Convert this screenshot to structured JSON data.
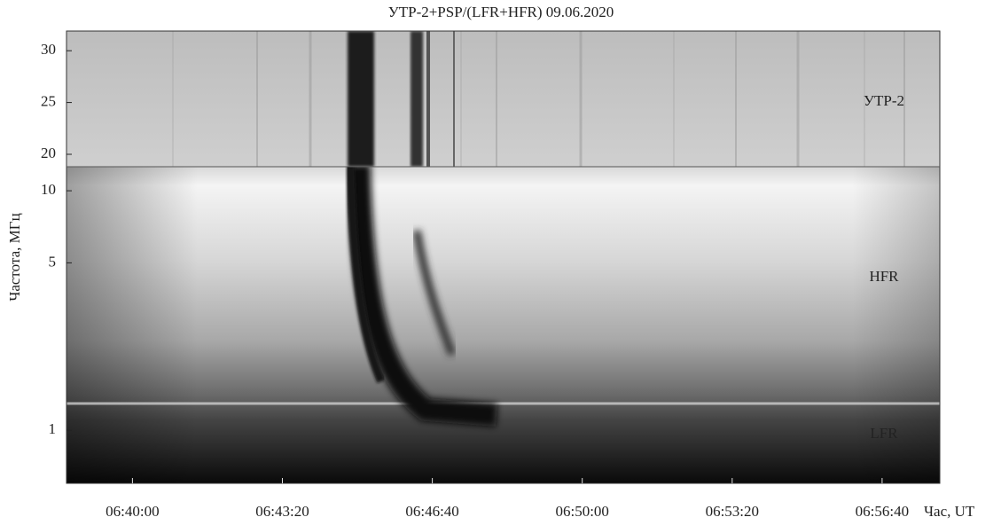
{
  "chart_data": {
    "type": "spectrogram",
    "title": "УТР-2+PSP/(LFR+HFR) 09.06.2020",
    "ylabel": "Частота, МГц",
    "xlabel": "Час, UT",
    "xlim": [
      23912,
      25077
    ],
    "xticks": [
      {
        "value": 24000,
        "label": "06:40:00"
      },
      {
        "value": 24200,
        "label": "06:43:20"
      },
      {
        "value": 24400,
        "label": "06:46:40"
      },
      {
        "value": 24600,
        "label": "06:50:00"
      },
      {
        "value": 24800,
        "label": "06:53:20"
      },
      {
        "value": 25000,
        "label": "06:56:40"
      }
    ],
    "panels": [
      {
        "labels": [
          "УТР-2"
        ],
        "scale": "linear",
        "ylim": [
          18.8,
          31.9
        ],
        "yticks": [
          20,
          25,
          30
        ]
      },
      {
        "labels": [
          "HFR",
          "LFR"
        ],
        "scale": "log",
        "ylim": [
          0.6,
          12.6
        ],
        "yticks": [
          1,
          5,
          10
        ]
      }
    ]
  }
}
